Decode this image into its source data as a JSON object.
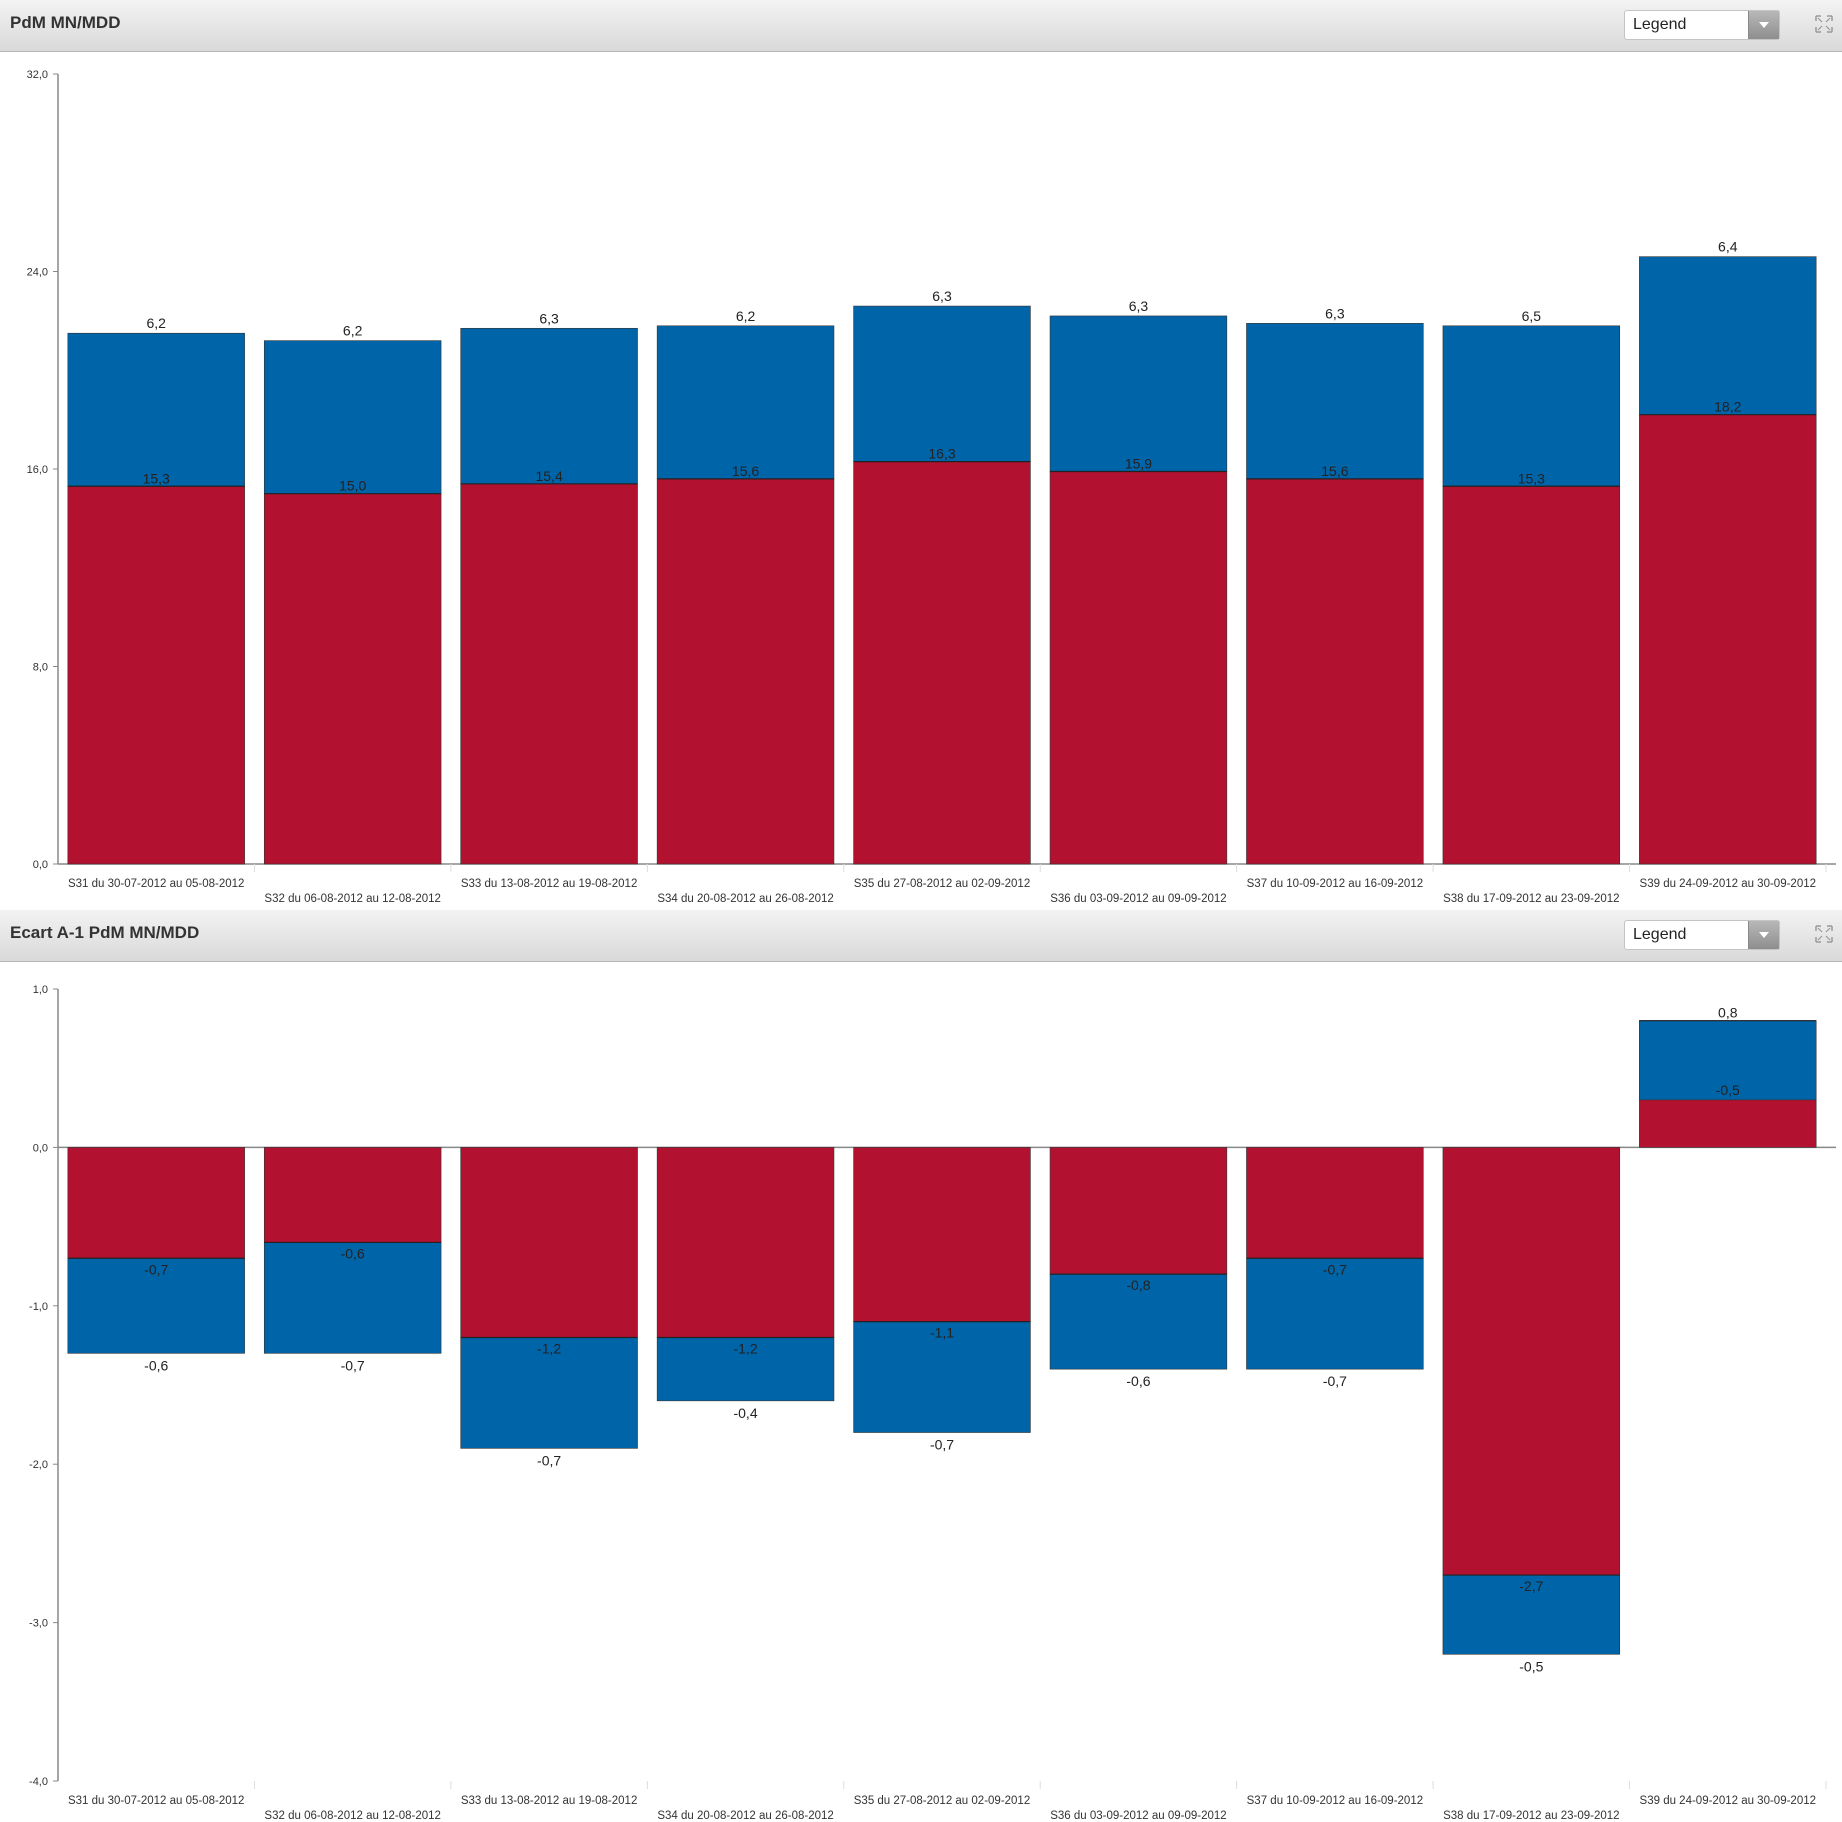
{
  "colors": {
    "mn": "#b21130",
    "mdd": "#0064a8",
    "axis": "#888888"
  },
  "panels": [
    {
      "title": "PdM MN/MDD",
      "legend_label": "Legend"
    },
    {
      "title": "Ecart A-1 PdM MN/MDD",
      "legend_label": "Legend"
    }
  ],
  "chart_data": [
    {
      "type": "bar",
      "stacked": true,
      "categories": [
        "S31 du 30-07-2012 au 05-08-2012",
        "S32 du 06-08-2012 au 12-08-2012",
        "S33 du 13-08-2012 au 19-08-2012",
        "S34 du 20-08-2012 au 26-08-2012",
        "S35 du 27-08-2012 au 02-09-2012",
        "S36 du 03-09-2012 au 09-09-2012",
        "S37 du 10-09-2012 au 16-09-2012",
        "S38 du 17-09-2012 au 23-09-2012",
        "S39 du 24-09-2012 au 30-09-2012"
      ],
      "series": [
        {
          "values": [
            15.3,
            15.0,
            15.4,
            15.6,
            16.3,
            15.9,
            15.6,
            15.3,
            18.2
          ],
          "labels": [
            "15,3",
            "15,0",
            "15,4",
            "15,6",
            "16,3",
            "15,9",
            "15,6",
            "15,3",
            "18,2"
          ]
        },
        {
          "values": [
            6.2,
            6.2,
            6.3,
            6.2,
            6.3,
            6.3,
            6.3,
            6.5,
            6.4
          ],
          "labels": [
            "6,2",
            "6,2",
            "6,3",
            "6,2",
            "6,3",
            "6,3",
            "6,3",
            "6,5",
            "6,4"
          ]
        }
      ],
      "ylim": [
        0,
        32
      ],
      "yticks": [
        0,
        8,
        16,
        24,
        32
      ],
      "ytick_labels": [
        "0,0",
        "8,0",
        "16,0",
        "24,0",
        "32,0"
      ],
      "grid": false,
      "title": "",
      "xlabel": "",
      "ylabel": ""
    },
    {
      "type": "bar",
      "stacked": true,
      "categories": [
        "S31 du 30-07-2012 au 05-08-2012",
        "S32 du 06-08-2012 au 12-08-2012",
        "S33 du 13-08-2012 au 19-08-2012",
        "S34 du 20-08-2012 au 26-08-2012",
        "S35 du 27-08-2012 au 02-09-2012",
        "S36 du 03-09-2012 au 09-09-2012",
        "S37 du 10-09-2012 au 16-09-2012",
        "S38 du 17-09-2012 au 23-09-2012",
        "S39 du 24-09-2012 au 30-09-2012"
      ],
      "series": [
        {
          "values": [
            -0.7,
            -0.6,
            -1.2,
            -1.2,
            -1.1,
            -0.8,
            -0.7,
            -2.7,
            0.8
          ],
          "labels": [
            "-0,7",
            "-0,6",
            "-1,2",
            "-1,2",
            "-1,1",
            "-0,8",
            "-0,7",
            "-2,7",
            "0,8"
          ]
        },
        {
          "values": [
            -0.6,
            -0.7,
            -0.7,
            -0.4,
            -0.7,
            -0.6,
            -0.7,
            -0.5,
            -0.5
          ],
          "labels": [
            "-0,6",
            "-0,7",
            "-0,7",
            "-0,4",
            "-0,7",
            "-0,6",
            "-0,7",
            "-0,5",
            "-0,5"
          ]
        }
      ],
      "ylim": [
        -4,
        1
      ],
      "yticks": [
        -4,
        -3,
        -2,
        -1,
        0,
        1
      ],
      "ytick_labels": [
        "-4,0",
        "-3,0",
        "-2,0",
        "-1,0",
        "0,0",
        "1,0"
      ],
      "grid": false,
      "title": "",
      "xlabel": "",
      "ylabel": ""
    }
  ]
}
